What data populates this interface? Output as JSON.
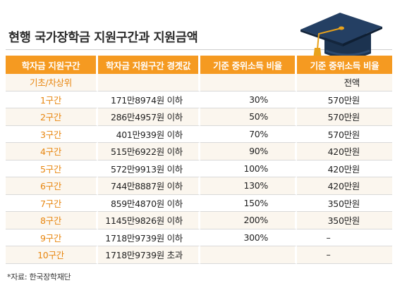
{
  "title": "현행 국가장학금 지원구간과 지원금액",
  "headers": [
    "학자금 지원구간",
    "학자금 지원구간 경곗값",
    "기준 중위소득 비율",
    "기준 중위소득 비율"
  ],
  "rows": [
    {
      "bracket": "기초/차상위",
      "threshold": "",
      "ratio": "",
      "amount": "전액"
    },
    {
      "bracket": "1구간",
      "threshold": "171만8974원 이하",
      "ratio": "30%",
      "amount": "570만원"
    },
    {
      "bracket": "2구간",
      "threshold": "286만4957원 이하",
      "ratio": "50%",
      "amount": "570만원"
    },
    {
      "bracket": "3구간",
      "threshold": "401만939원 이하",
      "ratio": "70%",
      "amount": "570만원"
    },
    {
      "bracket": "4구간",
      "threshold": "515만6922원 이하",
      "ratio": "90%",
      "amount": "420만원"
    },
    {
      "bracket": "5구간",
      "threshold": "572만9913원 이하",
      "ratio": "100%",
      "amount": "420만원"
    },
    {
      "bracket": "6구간",
      "threshold": "744만8887원 이하",
      "ratio": "130%",
      "amount": "420만원"
    },
    {
      "bracket": "7구간",
      "threshold": "859만4870원 이하",
      "ratio": "150%",
      "amount": "350만원"
    },
    {
      "bracket": "8구간",
      "threshold": "1145만9826원 이하",
      "ratio": "200%",
      "amount": "350만원"
    },
    {
      "bracket": "9구간",
      "threshold": "1718만9739원 이하",
      "ratio": "300%",
      "amount": "–"
    },
    {
      "bracket": "10구간",
      "threshold": "1718만9739원 초과",
      "ratio": "",
      "amount": "–"
    }
  ],
  "source": "*자료: 한국장학재단",
  "colors": {
    "header_bg": "#f59a21",
    "bracket_text": "#e8860f",
    "cap": "#1c3350",
    "tassel": "#e8a21c"
  },
  "icons": {
    "decoration": "graduation-cap-icon"
  }
}
